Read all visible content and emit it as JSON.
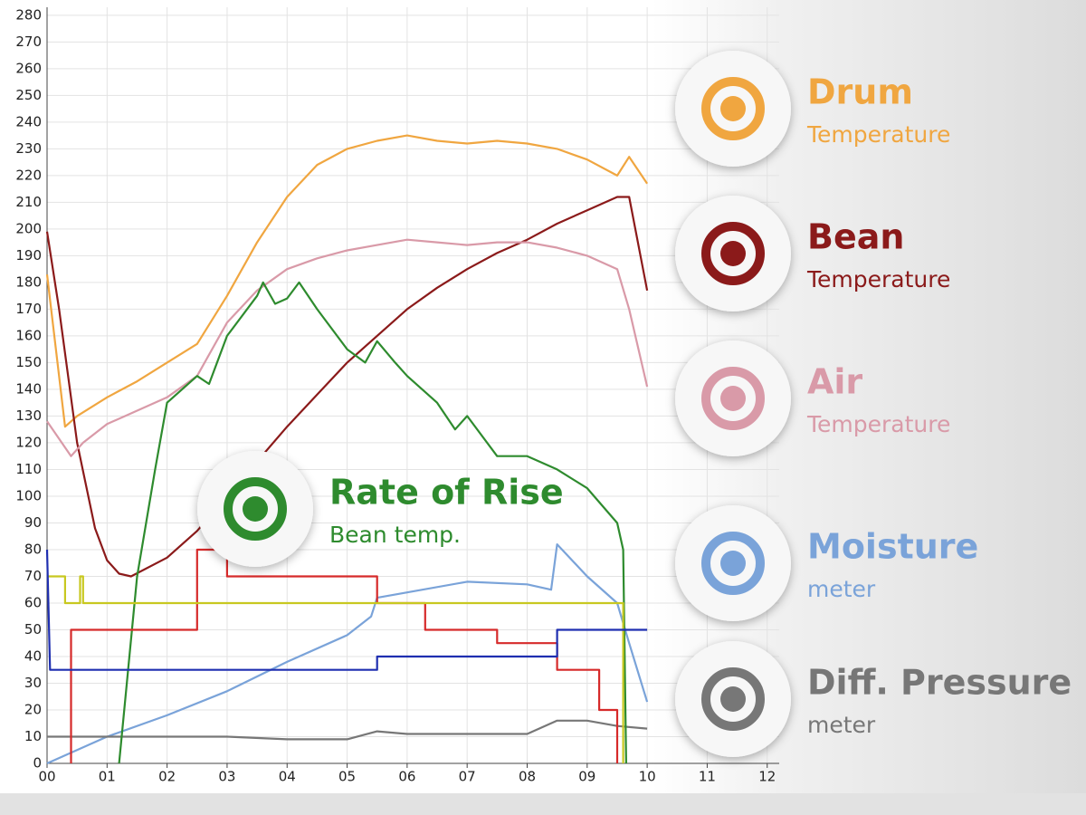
{
  "chart_data": {
    "type": "line",
    "xlim": [
      0,
      12.2
    ],
    "ylim": [
      0,
      283
    ],
    "xticks": [
      {
        "value": 0,
        "label": "00"
      },
      {
        "value": 1,
        "label": "01"
      },
      {
        "value": 2,
        "label": "02"
      },
      {
        "value": 3,
        "label": "03"
      },
      {
        "value": 4,
        "label": "04"
      },
      {
        "value": 5,
        "label": "05"
      },
      {
        "value": 6,
        "label": "06"
      },
      {
        "value": 7,
        "label": "07"
      },
      {
        "value": 8,
        "label": "08"
      },
      {
        "value": 9,
        "label": "09"
      },
      10,
      11,
      12
    ],
    "yticks": [
      0,
      10,
      20,
      30,
      40,
      50,
      60,
      70,
      80,
      90,
      100,
      110,
      120,
      130,
      140,
      150,
      160,
      170,
      180,
      190,
      200,
      210,
      220,
      230,
      240,
      250,
      260,
      270,
      280
    ],
    "grid": true,
    "series": [
      {
        "name": "Drum",
        "subtitle": "Temperature",
        "color": "#f0a640",
        "x": [
          0,
          0.3,
          0.5,
          1,
          1.5,
          2,
          2.5,
          3,
          3.5,
          4,
          4.5,
          5,
          5.5,
          6,
          6.5,
          7,
          7.5,
          8,
          8.5,
          9,
          9.5,
          9.7,
          10
        ],
        "values": [
          183,
          126,
          130,
          137,
          143,
          150,
          157,
          175,
          195,
          212,
          224,
          230,
          233,
          235,
          233,
          232,
          233,
          232,
          230,
          226,
          220,
          227,
          217
        ]
      },
      {
        "name": "Bean",
        "subtitle": "Temperature",
        "color": "#8b1a1a",
        "x": [
          0,
          0.2,
          0.5,
          0.8,
          1,
          1.2,
          1.4,
          2,
          2.5,
          3,
          3.5,
          4,
          4.5,
          5,
          5.5,
          6,
          6.5,
          7,
          7.5,
          8,
          8.5,
          9,
          9.5,
          9.7,
          10
        ],
        "values": [
          199,
          170,
          120,
          88,
          76,
          71,
          70,
          77,
          87,
          100,
          113,
          126,
          138,
          150,
          160,
          170,
          178,
          185,
          191,
          196,
          202,
          207,
          212,
          212,
          177
        ]
      },
      {
        "name": "Air",
        "subtitle": "Temperature",
        "color": "#d99aa8",
        "x": [
          0,
          0.4,
          0.6,
          1,
          1.5,
          2,
          2.5,
          3,
          3.5,
          4,
          4.5,
          5,
          5.5,
          6,
          6.5,
          7,
          7.5,
          8,
          8.5,
          9,
          9.5,
          9.7,
          10
        ],
        "values": [
          128,
          115,
          120,
          127,
          132,
          137,
          145,
          165,
          177,
          185,
          189,
          192,
          194,
          196,
          195,
          194,
          195,
          195,
          193,
          190,
          185,
          170,
          141
        ]
      },
      {
        "name": "Moisture",
        "subtitle": "meter",
        "color": "#7aa3d9",
        "x": [
          0,
          1,
          2,
          3,
          4,
          5,
          5.4,
          5.5,
          6,
          7,
          8,
          8.4,
          8.5,
          9,
          9.5,
          9.7,
          10
        ],
        "values": [
          0,
          10,
          18,
          27,
          38,
          48,
          55,
          62,
          64,
          68,
          67,
          65,
          82,
          70,
          60,
          45,
          23
        ]
      },
      {
        "name": "Diff. Pressure",
        "subtitle": "meter",
        "color": "#777777",
        "x": [
          0,
          1,
          2,
          3,
          4,
          5,
          5.5,
          6,
          7,
          8,
          8.5,
          9,
          9.5,
          10
        ],
        "values": [
          10,
          10,
          10,
          10,
          9,
          9,
          12,
          11,
          11,
          11,
          16,
          16,
          14,
          13
        ]
      },
      {
        "name": "Rate of Rise",
        "subtitle": "Bean temp.",
        "color": "#2e8b2e",
        "x": [
          1.2,
          1.5,
          1.8,
          2,
          2.5,
          2.7,
          3,
          3.5,
          3.6,
          3.8,
          4,
          4.2,
          4.5,
          5,
          5.3,
          5.5,
          5.8,
          6,
          6.5,
          6.8,
          7,
          7.5,
          8,
          8.5,
          9,
          9.5,
          9.6,
          9.65
        ],
        "values": [
          0,
          70,
          110,
          135,
          145,
          142,
          160,
          175,
          180,
          172,
          174,
          180,
          170,
          155,
          150,
          158,
          150,
          145,
          135,
          125,
          130,
          115,
          115,
          110,
          103,
          90,
          80,
          0
        ]
      },
      {
        "color": "#d62a2a",
        "x": [
          0.4,
          0.4,
          2.5,
          2.5,
          3,
          3,
          5.5,
          5.5,
          6.3,
          6.3,
          7.5,
          7.5,
          8.5,
          8.5,
          9.2,
          9.2,
          9.5,
          9.5
        ],
        "values": [
          0,
          50,
          50,
          80,
          80,
          70,
          70,
          60,
          60,
          50,
          50,
          45,
          45,
          35,
          35,
          20,
          20,
          0
        ]
      },
      {
        "color": "#c8c820",
        "x": [
          0,
          0.3,
          0.3,
          0.55,
          0.55,
          0.6,
          0.6,
          9.6,
          9.6
        ],
        "values": [
          70,
          70,
          60,
          60,
          70,
          70,
          60,
          60,
          0
        ]
      },
      {
        "color": "#1f2fb0",
        "x": [
          0,
          0.05,
          5.5,
          5.5,
          8.5,
          8.5,
          10
        ],
        "values": [
          80,
          35,
          35,
          40,
          40,
          50,
          50
        ]
      }
    ]
  }
}
